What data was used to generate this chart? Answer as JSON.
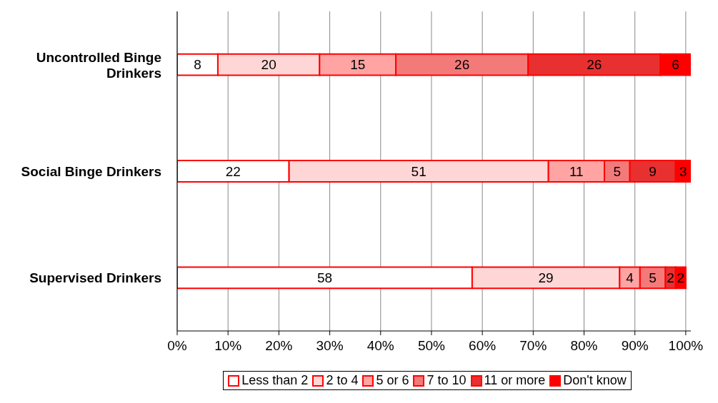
{
  "chart_data": {
    "type": "bar",
    "orientation": "horizontal",
    "stacked": true,
    "categories": [
      "Uncontrolled Binge Drinkers",
      "Social Binge Drinkers",
      "Supervised Drinkers"
    ],
    "series": [
      {
        "name": "Less than 2",
        "color": "#ffffff",
        "values": [
          8,
          22,
          58
        ]
      },
      {
        "name": "2 to 4",
        "color": "#ffd6d6",
        "values": [
          20,
          51,
          29
        ]
      },
      {
        "name": "5 or 6",
        "color": "#ffa3a3",
        "values": [
          15,
          11,
          4
        ]
      },
      {
        "name": "7 to 10",
        "color": "#f47a7a",
        "values": [
          26,
          5,
          5
        ]
      },
      {
        "name": "11 or more",
        "color": "#e83030",
        "values": [
          26,
          9,
          2
        ]
      },
      {
        "name": "Don't know",
        "color": "#ff0000",
        "values": [
          6,
          3,
          2
        ]
      }
    ],
    "xlim": [
      0,
      101
    ],
    "xticks": [
      {
        "value": 0,
        "label": "0%"
      },
      {
        "value": 10,
        "label": "10%"
      },
      {
        "value": 20,
        "label": "20%"
      },
      {
        "value": 30,
        "label": "30%"
      },
      {
        "value": 40,
        "label": "40%"
      },
      {
        "value": 50,
        "label": "50%"
      },
      {
        "value": 60,
        "label": "60%"
      },
      {
        "value": 70,
        "label": "70%"
      },
      {
        "value": 80,
        "label": "80%"
      },
      {
        "value": 90,
        "label": "90%"
      },
      {
        "value": 100,
        "label": "100%"
      }
    ],
    "grid": "x",
    "legend": "bottom",
    "data_labels": true
  }
}
